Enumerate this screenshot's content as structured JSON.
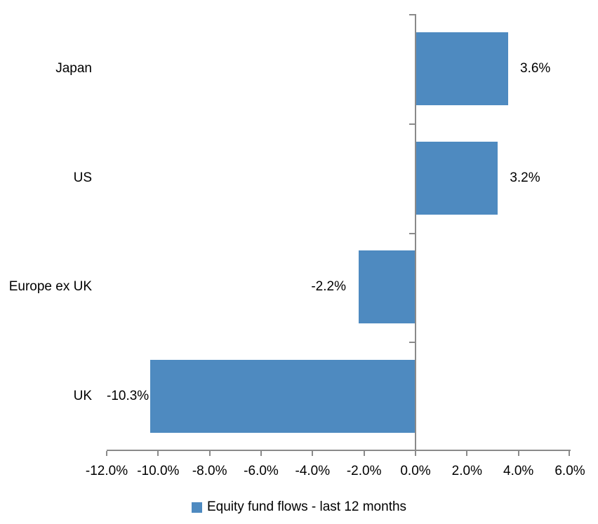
{
  "chart_data": {
    "type": "bar",
    "orientation": "horizontal",
    "title": "",
    "categories": [
      "Japan",
      "US",
      "Europe ex UK",
      "UK"
    ],
    "values": [
      3.6,
      3.2,
      -2.2,
      -10.3
    ],
    "value_labels": [
      "3.6%",
      "3.2%",
      "-2.2%",
      "-10.3%"
    ],
    "x_ticks": [
      "-12.0%",
      "-10.0%",
      "-8.0%",
      "-6.0%",
      "-4.0%",
      "-2.0%",
      "0.0%",
      "2.0%",
      "4.0%",
      "6.0%"
    ],
    "xlim": [
      -12,
      6
    ],
    "tick_step": 2,
    "grid": false,
    "legend": "Equity fund flows - last 12 months",
    "legend_position": "bottom",
    "bar_color": "#4e8ac0",
    "axis_color": "#8a8a8a",
    "text_color": "#000000"
  }
}
